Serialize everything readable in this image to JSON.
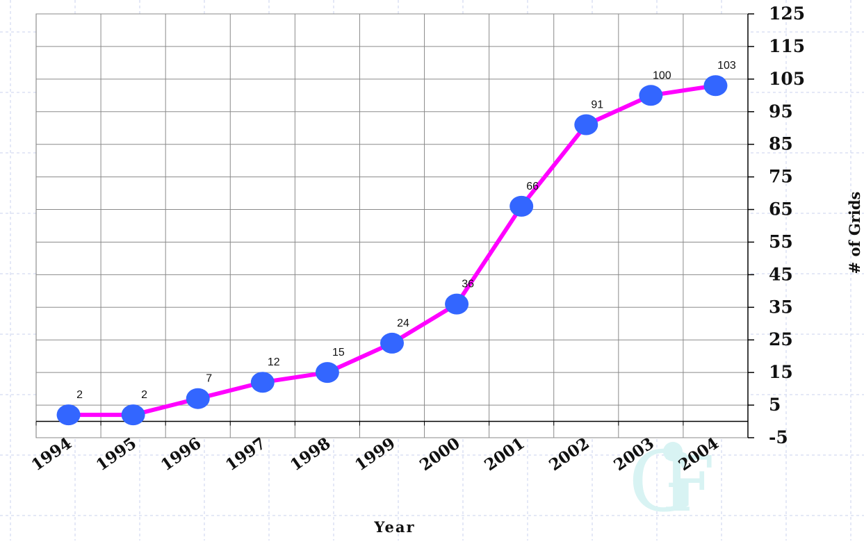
{
  "chart_data": {
    "type": "line",
    "title": "",
    "xlabel": "Year",
    "ylabel": "# of Grids",
    "x_tick_labels": [
      "1994",
      "1995",
      "1996",
      "1997",
      "1998",
      "1999",
      "2000",
      "2001",
      "2002",
      "2003",
      "2004"
    ],
    "y_tick_labels": [
      "125",
      "115",
      "105",
      "95",
      "85",
      "75",
      "65",
      "55",
      "45",
      "35",
      "25",
      "15",
      "5",
      "-5"
    ],
    "ylim": [
      -5,
      125
    ],
    "y_axis_side": "right",
    "grid": true,
    "legend": "none",
    "series": [
      {
        "x": [
          "1994",
          "1995",
          "1996",
          "1997",
          "1998",
          "1999",
          "2000",
          "2001",
          "2002",
          "2003",
          "2004"
        ],
        "values": [
          2,
          2,
          7,
          12,
          15,
          24,
          36,
          66,
          91,
          100,
          103
        ],
        "labels": [
          "2",
          "2",
          "7",
          "12",
          "15",
          "24",
          "36",
          "66",
          "91",
          "100",
          "103"
        ],
        "line_color": "#ff00ff",
        "marker_color": "#3366ff"
      }
    ],
    "watermark_logo": "GF"
  }
}
